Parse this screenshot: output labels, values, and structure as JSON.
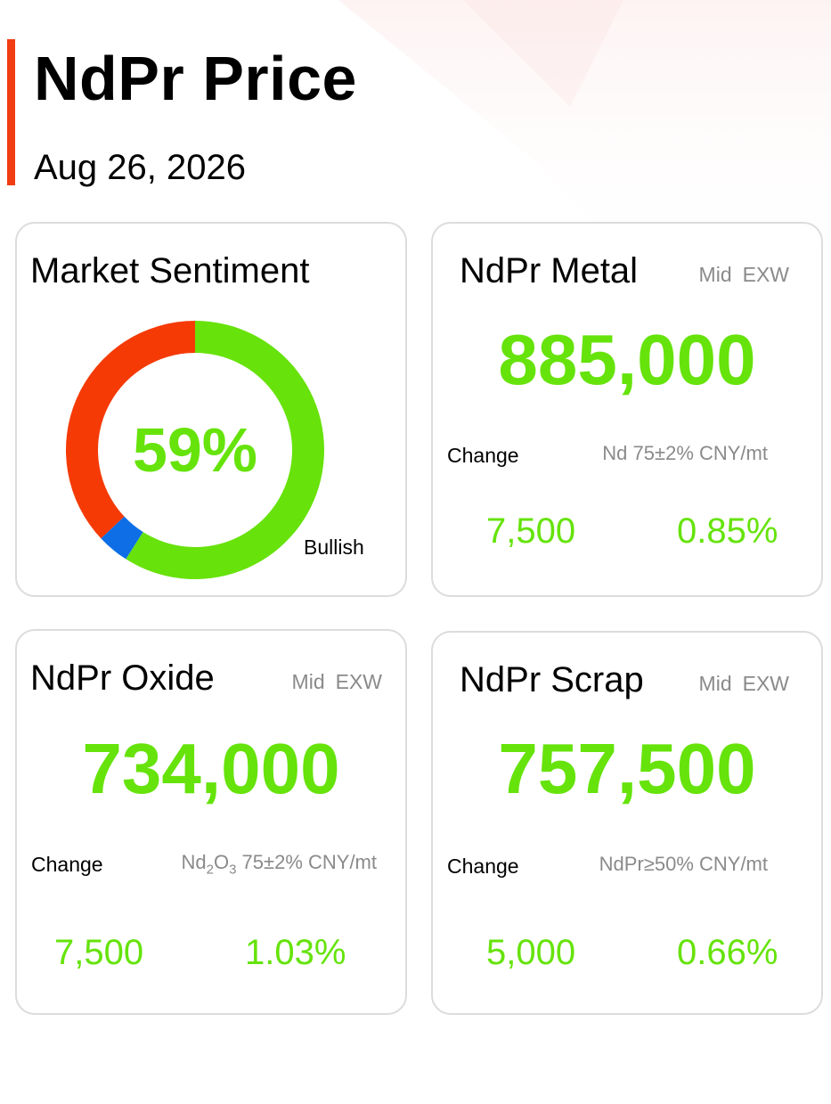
{
  "header": {
    "title": "NdPr Price",
    "date": "Aug 26, 2026"
  },
  "colors": {
    "accent": "#f23c11",
    "up": "#66e30b",
    "bearish": "#f53a06",
    "neutral": "#0d6ee6",
    "bullish": "#67e20b",
    "muted": "#8a8a8a"
  },
  "sentiment": {
    "title": "Market Sentiment",
    "value": "59%",
    "label": "Bullish",
    "shares": {
      "bullish": 59,
      "neutral": 4,
      "bearish": 37
    }
  },
  "metal": {
    "title": "NdPr Metal",
    "meta_mid": "Mid",
    "meta_exw": "EXW",
    "price": "885,000",
    "change_label": "Change",
    "spec": "Nd 75±2% CNY/mt",
    "change_abs": "7,500",
    "change_pct": "0.85%"
  },
  "oxide": {
    "title": "NdPr Oxide",
    "meta_mid": "Mid",
    "meta_exw": "EXW",
    "price": "734,000",
    "change_label": "Change",
    "spec_prefix": "Nd",
    "spec_sub1": "2",
    "spec_mid": "O",
    "spec_sub2": "3",
    "spec_suffix": " 75±2% CNY/mt",
    "change_abs": "7,500",
    "change_pct": "1.03%"
  },
  "scrap": {
    "title": "NdPr Scrap",
    "meta_mid": "Mid",
    "meta_exw": "EXW",
    "price": "757,500",
    "change_label": "Change",
    "spec": "NdPr≥50% CNY/mt",
    "change_abs": "5,000",
    "change_pct": "0.66%"
  }
}
